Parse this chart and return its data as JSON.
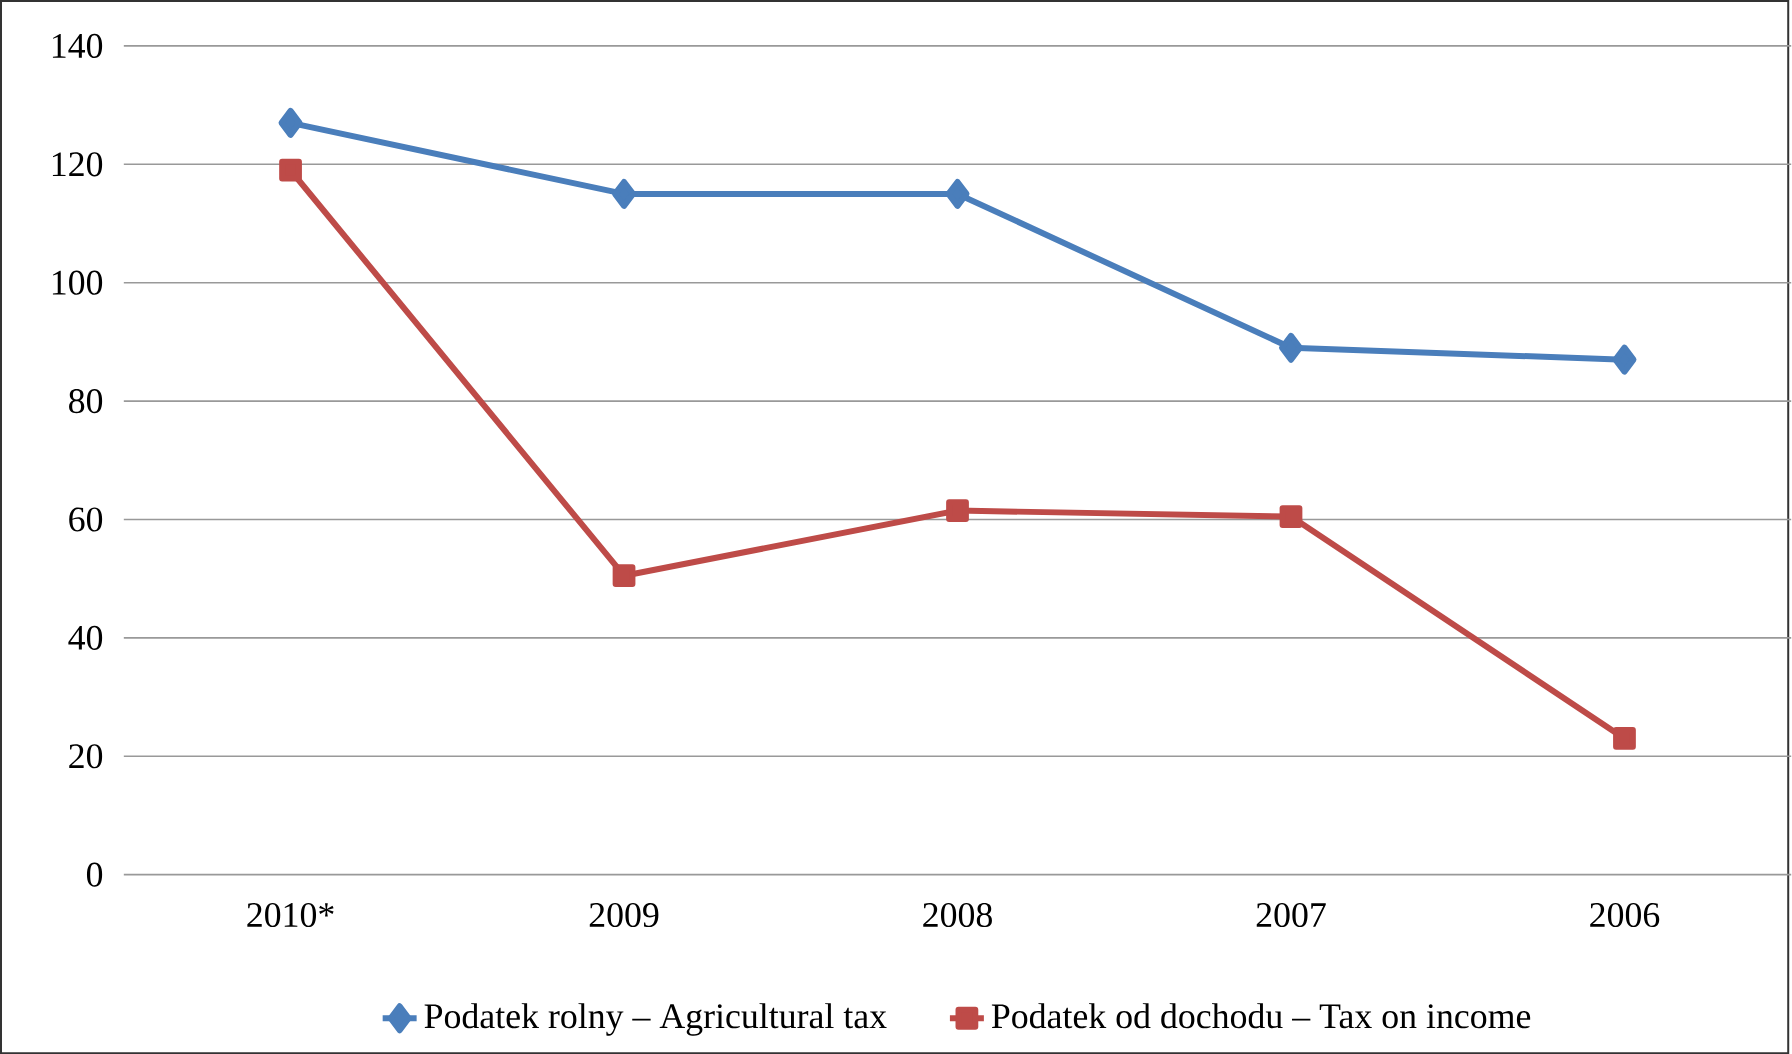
{
  "chart_data": {
    "type": "line",
    "categories": [
      "2010*",
      "2009",
      "2008",
      "2007",
      "2006"
    ],
    "series": [
      {
        "name": "Podatek rolny – Agricultural tax",
        "color": "#4a7ebb",
        "marker": "diamond",
        "values": [
          127,
          115,
          115,
          89,
          87
        ]
      },
      {
        "name": "Podatek od dochodu – Tax on income",
        "color": "#be4b48",
        "marker": "square",
        "values": [
          119,
          50.5,
          61.5,
          60.5,
          23
        ]
      }
    ],
    "ylim": [
      0,
      140
    ],
    "yticks": [
      0,
      20,
      40,
      60,
      80,
      100,
      120,
      140
    ],
    "grid": "y",
    "legend": "bottom",
    "line_style": "solid"
  }
}
